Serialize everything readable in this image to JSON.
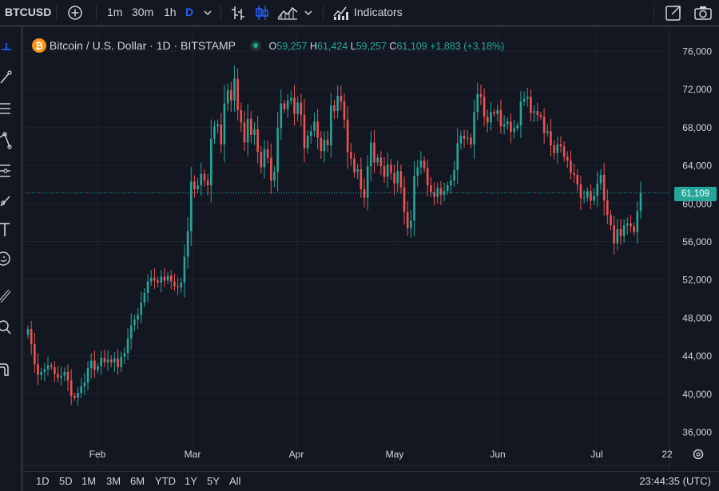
{
  "toolbar": {
    "symbol": "BTCUSD",
    "intervals": [
      "1m",
      "30m",
      "1h",
      "D"
    ],
    "indicators_label": "Indicators",
    "colors": {
      "accent": "#2962ff",
      "text": "#d1d4dc"
    }
  },
  "legend": {
    "title": "Bitcoin / U.S. Dollar · 1D · BITSTAMP",
    "open_label": "O",
    "open": "59,257",
    "high_label": "H",
    "high": "61,424",
    "low_label": "L",
    "low": "59,257",
    "close_label": "C",
    "close": "61,109",
    "change": "+1,883 (+3.18%)"
  },
  "price_tag": "61,109",
  "range_buttons": [
    "1D",
    "5D",
    "1M",
    "3M",
    "6M",
    "YTD",
    "1Y",
    "5Y",
    "All"
  ],
  "clock": "23:44:35 (UTC)",
  "chart_data": {
    "type": "candlestick",
    "title": "Bitcoin / U.S. Dollar · 1D · BITSTAMP",
    "y_ticks": [
      "76,000",
      "72,000",
      "68,000",
      "64,000",
      "60,000",
      "56,000",
      "52,000",
      "48,000",
      "44,000",
      "40,000",
      "36,000"
    ],
    "x_ticks": [
      "Feb",
      "Mar",
      "Apr",
      "May",
      "Jun",
      "Jul",
      "22"
    ],
    "ylim": [
      35000,
      77000
    ],
    "last_price": 61109,
    "colors": {
      "up": "#26a69a",
      "down": "#ef5350"
    },
    "grid": true,
    "closes": [
      46800,
      45200,
      43100,
      42000,
      42300,
      42600,
      43000,
      42800,
      42100,
      41700,
      41900,
      42300,
      41400,
      39800,
      39600,
      40100,
      40800,
      41200,
      42700,
      43500,
      42500,
      42900,
      43800,
      43300,
      43600,
      43300,
      43700,
      42800,
      43900,
      44300,
      45800,
      47200,
      47800,
      48300,
      49600,
      50600,
      51800,
      52200,
      51900,
      51700,
      52300,
      51900,
      52400,
      51800,
      51300,
      51200,
      51700,
      54400,
      57100,
      62300,
      61500,
      61900,
      63100,
      62400,
      61900,
      66800,
      68100,
      68300,
      66200,
      70500,
      71900,
      70800,
      73100,
      69800,
      68500,
      66400,
      68900,
      67200,
      67800,
      65400,
      63800,
      65700,
      64800,
      62400,
      63300,
      67900,
      70500,
      69900,
      70800,
      71100,
      69400,
      70600,
      69300,
      65800,
      67100,
      67600,
      68600,
      66900,
      65500,
      66700,
      66100,
      70300,
      69700,
      71300,
      70700,
      68800,
      65400,
      64700,
      63300,
      63600,
      61500,
      60600,
      63900,
      66400,
      64300,
      64800,
      63900,
      62800,
      64100,
      63200,
      62100,
      63400,
      61700,
      59100,
      57400,
      58200,
      62900,
      63800,
      64500,
      63700,
      61900,
      61200,
      60700,
      61600,
      60900,
      61300,
      61900,
      62400,
      63500,
      66300,
      67100,
      66800,
      66900,
      66200,
      69600,
      71500,
      71200,
      69100,
      68500,
      69600,
      69400,
      69800,
      68100,
      68300,
      68600,
      67500,
      67900,
      68200,
      70700,
      71000,
      71200,
      69500,
      69700,
      69300,
      69100,
      67400,
      67600,
      66100,
      65300,
      66200,
      66000,
      64900,
      64500,
      63200,
      63000,
      62000,
      60600,
      60600,
      61300,
      60300,
      60800,
      62100,
      63000,
      60300,
      58800,
      57700,
      55800,
      57300,
      56600,
      57700,
      57900,
      57600,
      57000,
      59200,
      61109
    ]
  }
}
